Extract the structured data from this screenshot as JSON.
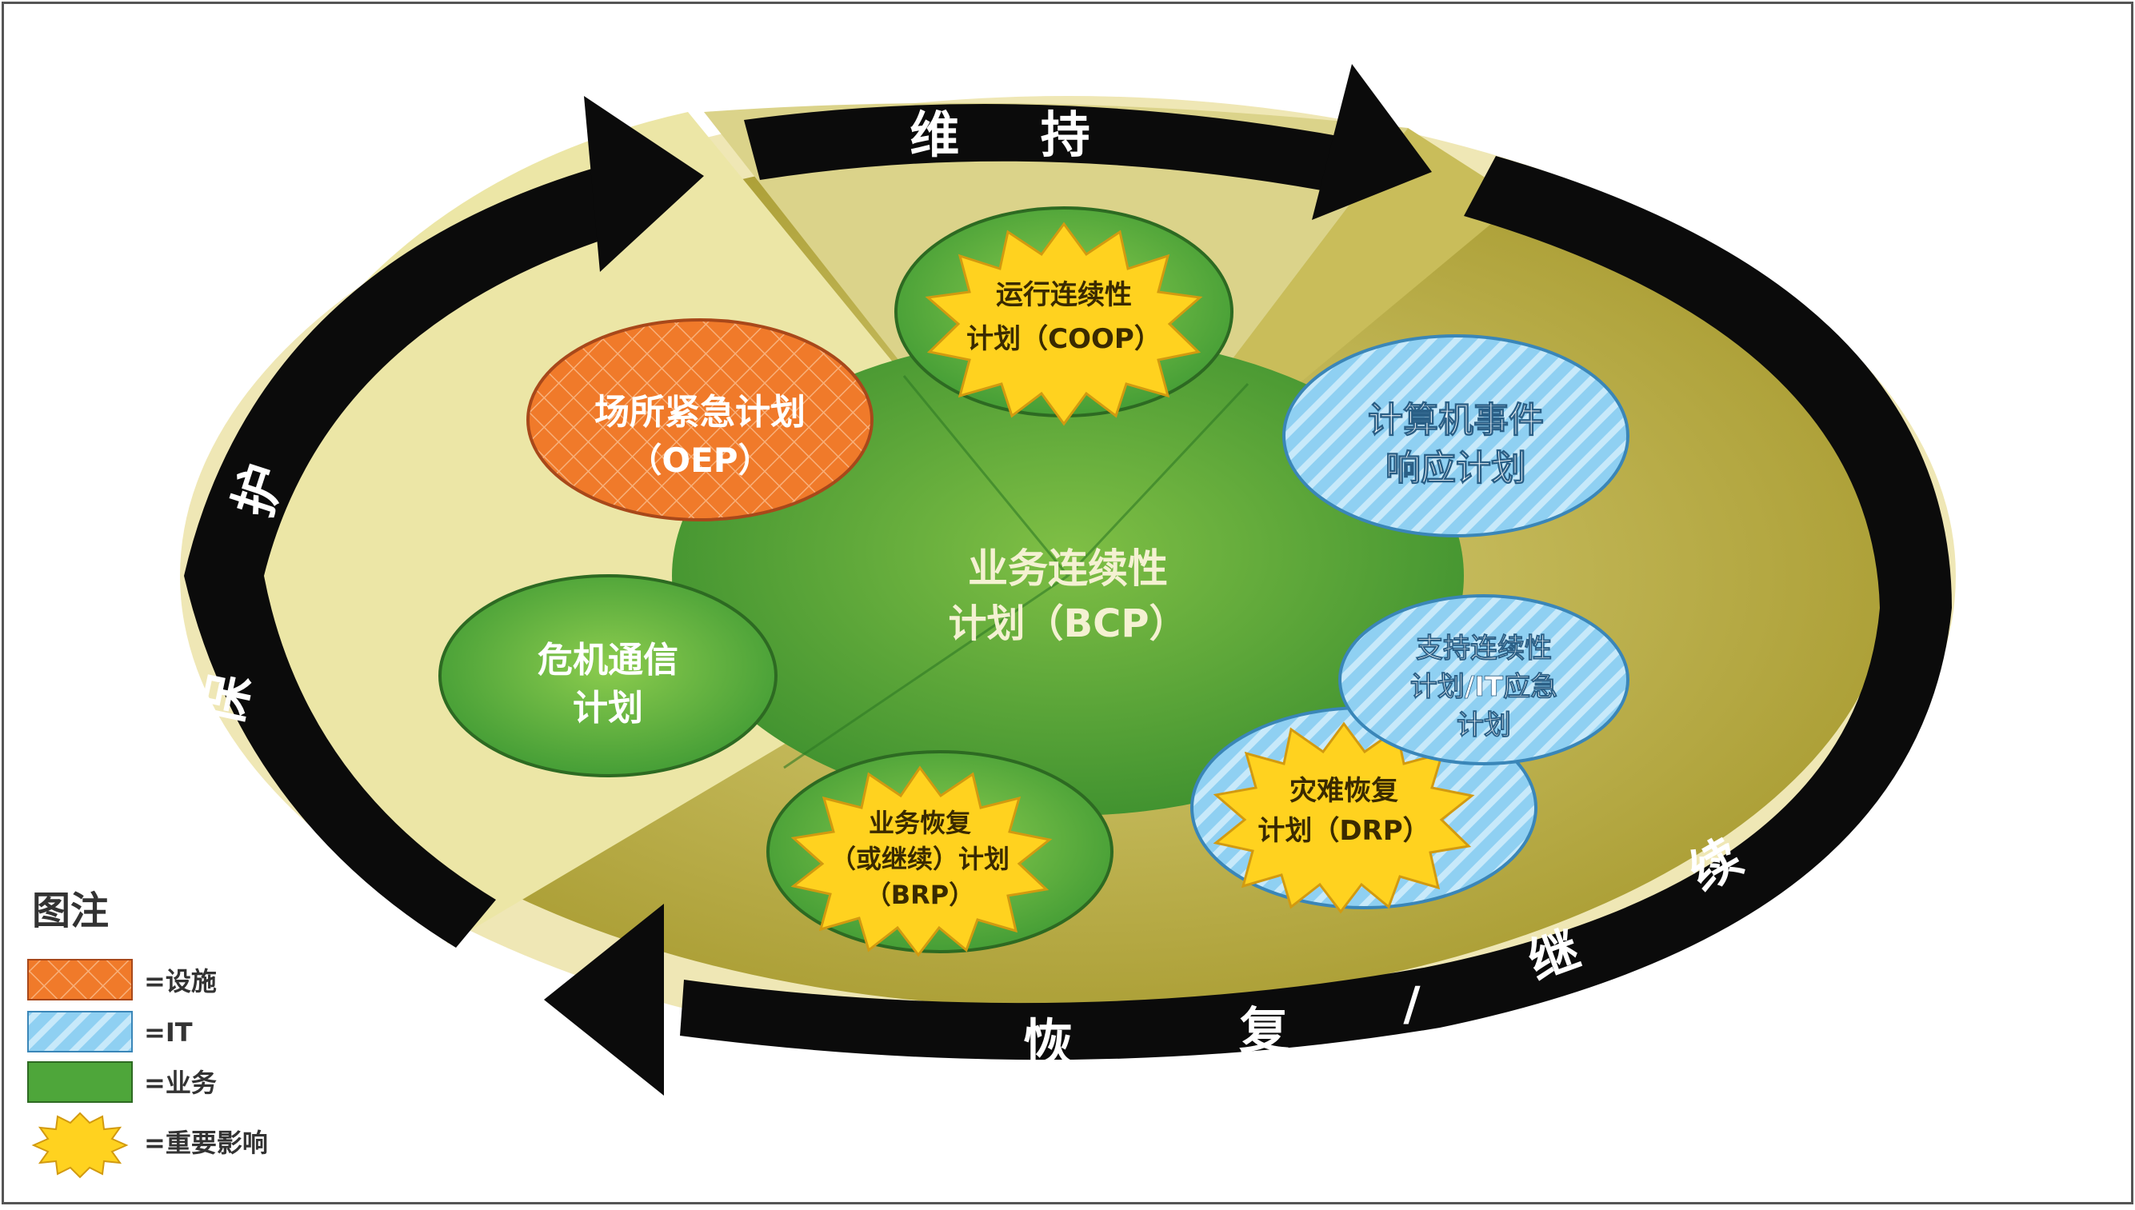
{
  "cycle": {
    "top_label": "维 持",
    "left_label_1": "保",
    "left_label_2": "护",
    "bottom_label_1": "恢",
    "bottom_label_2": "复",
    "bottom_label_3": "/",
    "bottom_label_4": "继",
    "bottom_label_5": "续"
  },
  "center": {
    "line1": "业务连续性",
    "line2": "计划（BCP）"
  },
  "plans": {
    "coop": {
      "line1": "运行连续性",
      "line2": "计划（COOP）"
    },
    "oep": {
      "line1": "场所紧急计划",
      "line2": "（OEP）"
    },
    "cirp": {
      "line1": "计算机事件",
      "line2": "响应计划"
    },
    "crisis": {
      "line1": "危机通信",
      "line2": "计划"
    },
    "support": {
      "line1": "支持连续性",
      "line2": "计划/IT应急",
      "line3": "计划"
    },
    "drp": {
      "line1": "灾难恢复",
      "line2": "计划（DRP）"
    },
    "brp": {
      "line1": "业务恢复",
      "line2": "（或继续）计划",
      "line3": "（BRP）"
    }
  },
  "legend": {
    "title": "图注",
    "items": [
      "=设施",
      "=IT",
      "=业务",
      "=重要影响"
    ]
  },
  "colors": {
    "facility": "#f07a2a",
    "it": "#8fd0f2",
    "business": "#4ea63a",
    "impact": "#ffd21f",
    "arrow": "#0b0b0b",
    "ring": "#b9ad45",
    "inner_light": "#ece6a6"
  }
}
